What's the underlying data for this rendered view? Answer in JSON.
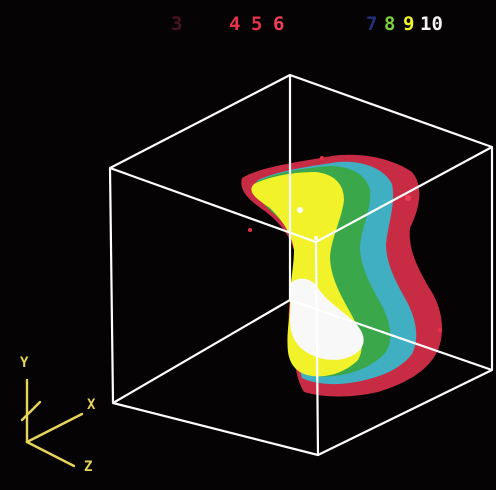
{
  "legend": {
    "levels": [
      {
        "label": "3",
        "color": "#4a1422"
      },
      {
        "label": "4",
        "color": "#e8324a"
      },
      {
        "label": "5",
        "color": "#e8324a"
      },
      {
        "label": "6",
        "color": "#f0405a"
      },
      {
        "label": "7",
        "color": "#24307a"
      },
      {
        "label": "8",
        "color": "#7fcf3a"
      },
      {
        "label": "9",
        "color": "#f2f22a"
      },
      {
        "label": "10",
        "color": "#f4f4f4"
      }
    ]
  },
  "axes": {
    "y": "Y",
    "x": "X",
    "z": "Z"
  },
  "colors": {
    "background": "#050304",
    "box": "#ffffff",
    "axes": "#e8d45a",
    "level_red": "#e8324a",
    "level_cyan": "#38b6c8",
    "level_green": "#3aa84a",
    "level_yellow": "#f2f22a",
    "level_white": "#f6f6f6"
  }
}
